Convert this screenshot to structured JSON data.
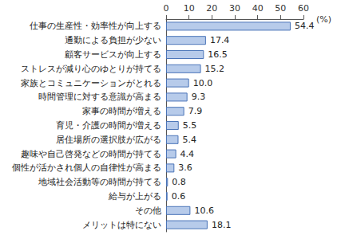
{
  "chart_data": {
    "type": "bar",
    "orientation": "horizontal",
    "categories": [
      "仕事の生産性・効率性が向上する",
      "通勤による負担が少ない",
      "顧客サービスが向上する",
      "ストレスが減り心のゆとりが持てる",
      "家族とコミュニケーションがとれる",
      "時間管理に対する意識が高まる",
      "家事の時間が増える",
      "育児・介護の時間が増える",
      "居住場所の選択肢が広がる",
      "趣味や自己啓発などの時間が持てる",
      "個性が活かされ個人の自律性が高まる",
      "地域社会活動等の時間が持てる",
      "給与が上がる",
      "その他",
      "メリットは特にない"
    ],
    "values": [
      54.4,
      17.4,
      16.5,
      15.2,
      10.0,
      9.3,
      7.9,
      5.5,
      5.4,
      4.4,
      3.6,
      0.8,
      0.6,
      10.6,
      18.1
    ],
    "value_labels": [
      "54.4",
      "17.4",
      "16.5",
      "15.2",
      "10.0",
      "9.3",
      "7.9",
      "5.5",
      "5.4",
      "4.4",
      "3.6",
      "0.8",
      "0.6",
      "10.6",
      "18.1"
    ],
    "xlabel": "(%)",
    "xlim": [
      0,
      60
    ],
    "xticks": [
      0,
      10,
      20,
      30,
      40,
      50,
      60
    ],
    "color": "#b7cbea",
    "grid": false,
    "data_labels": true
  }
}
